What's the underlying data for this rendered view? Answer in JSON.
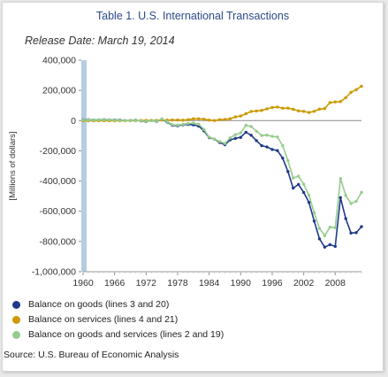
{
  "header": {
    "title": "Table 1. U.S. International Transactions",
    "release_date": "Release Date: March 19, 2014"
  },
  "source": "Source: U.S. Bureau of Economic Analysis",
  "colors": {
    "goods": "#1f3a8a",
    "services": "#cc9900",
    "goods_services": "#96cc8c",
    "zero_band": "#b5cde3"
  },
  "chart_data": {
    "type": "line",
    "ylabel": "[Millions of dollars]",
    "xlabel": "",
    "ylim": [
      -1000000,
      400000
    ],
    "yticks": [
      400000,
      200000,
      0,
      -200000,
      -400000,
      -600000,
      -800000,
      -1000000
    ],
    "ytick_labels": [
      "400,000",
      "200,000",
      "0",
      "-200,000",
      "-400,000",
      "-600,000",
      "-800,000",
      "-1,000,000"
    ],
    "xlim": [
      1960,
      2013
    ],
    "xticks": [
      1960,
      1966,
      1972,
      1978,
      1984,
      1990,
      1996,
      2002,
      2008
    ],
    "xtick_labels": [
      "1960",
      "1966",
      "1972",
      "1978",
      "1984",
      "1990",
      "1996",
      "2002",
      "2008"
    ],
    "legend_position": "bottom",
    "x": [
      1960,
      1961,
      1962,
      1963,
      1964,
      1965,
      1966,
      1967,
      1968,
      1969,
      1970,
      1971,
      1972,
      1973,
      1974,
      1975,
      1976,
      1977,
      1978,
      1979,
      1980,
      1981,
      1982,
      1983,
      1984,
      1985,
      1986,
      1987,
      1988,
      1989,
      1990,
      1991,
      1992,
      1993,
      1994,
      1995,
      1996,
      1997,
      1998,
      1999,
      2000,
      2001,
      2002,
      2003,
      2004,
      2005,
      2006,
      2007,
      2008,
      2009,
      2010,
      2011,
      2012,
      2013
    ],
    "series": [
      {
        "name": "Balance on goods (lines 3 and 20)",
        "color": "#1f3a8a",
        "values": [
          4892,
          5571,
          4521,
          5224,
          6801,
          4951,
          3817,
          3800,
          635,
          607,
          2603,
          -2260,
          -6416,
          911,
          -5505,
          8903,
          -9483,
          -31091,
          -33927,
          -27568,
          -25500,
          -28023,
          -36485,
          -67102,
          -112492,
          -122173,
          -145081,
          -159557,
          -126959,
          -117749,
          -111037,
          -76937,
          -96897,
          -132451,
          -165831,
          -174170,
          -191000,
          -198428,
          -248221,
          -337068,
          -446783,
          -422370,
          -475245,
          -541643,
          -664766,
          -782804,
          -837289,
          -821196,
          -832492,
          -509694,
          -648671,
          -744135,
          -741475,
          -701669
        ]
      },
      {
        "name": "Balance on services (lines 4 and 21)",
        "color": "#cc9900",
        "values": [
          -1385,
          -1385,
          -1151,
          -1011,
          -830,
          -1002,
          -1375,
          -1349,
          -1039,
          -1118,
          -344,
          953,
          1141,
          1064,
          1497,
          3505,
          3402,
          3845,
          4164,
          3011,
          6093,
          11852,
          12329,
          9335,
          3422,
          294,
          6543,
          7874,
          12393,
          24596,
          30173,
          45802,
          60394,
          63737,
          67336,
          77786,
          86935,
          90155,
          82081,
          82738,
          74855,
          64398,
          61167,
          54007,
          61612,
          75573,
          80087,
          119157,
          123805,
          125940,
          151459,
          187120,
          204440,
          227540
        ]
      },
      {
        "name": "Balance on goods and services (lines 2 and 19)",
        "color": "#96cc8c",
        "values": [
          3508,
          4195,
          3370,
          4210,
          6022,
          4664,
          2939,
          2604,
          250,
          91,
          2254,
          -1302,
          -5443,
          1900,
          -4293,
          12404,
          -6082,
          -27246,
          -29763,
          -24565,
          -19407,
          -16172,
          -24156,
          -57767,
          -109072,
          -121880,
          -138538,
          -151684,
          -114566,
          -93141,
          -80864,
          -31135,
          -39212,
          -70311,
          -98493,
          -96384,
          -104065,
          -108273,
          -166140,
          -265090,
          -379835,
          -367518,
          -421180,
          -494814,
          -609883,
          -714245,
          -761716,
          -705375,
          -708726,
          -383774,
          -494658,
          -548625,
          -534656,
          -474864
        ]
      }
    ]
  }
}
